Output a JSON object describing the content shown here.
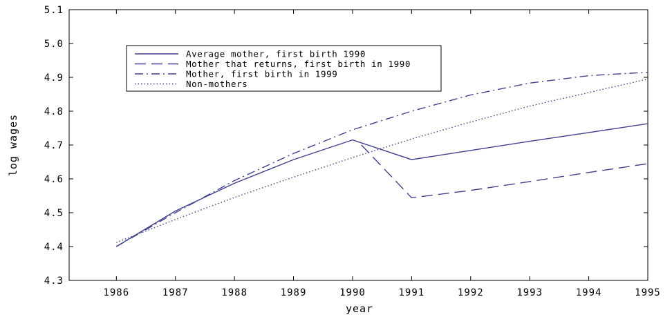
{
  "chart_data": {
    "type": "line",
    "title": "",
    "xlabel": "year",
    "ylabel": "log wages",
    "xlim": [
      1985.2,
      1995
    ],
    "ylim": [
      4.3,
      5.1
    ],
    "x_ticks": [
      1986,
      1987,
      1988,
      1989,
      1990,
      1991,
      1992,
      1993,
      1994,
      1995
    ],
    "y_ticks": [
      "4.3",
      "4.4",
      "4.5",
      "4.6",
      "4.7",
      "4.8",
      "4.9",
      "5.0",
      "5.1"
    ],
    "grid": false,
    "legend_position": "top-left",
    "line_color": "#3f3f8c",
    "series": [
      {
        "name": "Average mother, first birth 1990",
        "style": "solid",
        "x": [
          1986,
          1987,
          1988,
          1989,
          1990,
          1991,
          1992,
          1993,
          1994,
          1995
        ],
        "y": [
          4.4,
          4.505,
          4.587,
          4.657,
          4.715,
          4.657,
          4.684,
          4.711,
          4.737,
          4.763
        ]
      },
      {
        "name": "Mother that returns, first birth in 1990",
        "style": "dashed",
        "x": [
          1990.15,
          1991,
          1992,
          1993,
          1994,
          1995
        ],
        "y": [
          4.7,
          4.544,
          4.566,
          4.592,
          4.619,
          4.645
        ]
      },
      {
        "name": "Mother, first birth in 1999",
        "style": "dashdot",
        "x": [
          1986,
          1987,
          1988,
          1989,
          1990,
          1991,
          1992,
          1993,
          1994,
          1995
        ],
        "y": [
          4.4,
          4.5,
          4.595,
          4.675,
          4.745,
          4.8,
          4.848,
          4.883,
          4.905,
          4.915
        ]
      },
      {
        "name": "Non-mothers",
        "style": "dotted",
        "x": [
          1986,
          1987,
          1988,
          1989,
          1990,
          1991,
          1992,
          1993,
          1994,
          1995
        ],
        "y": [
          4.412,
          4.48,
          4.545,
          4.605,
          4.663,
          4.718,
          4.768,
          4.815,
          4.855,
          4.895
        ]
      }
    ]
  }
}
